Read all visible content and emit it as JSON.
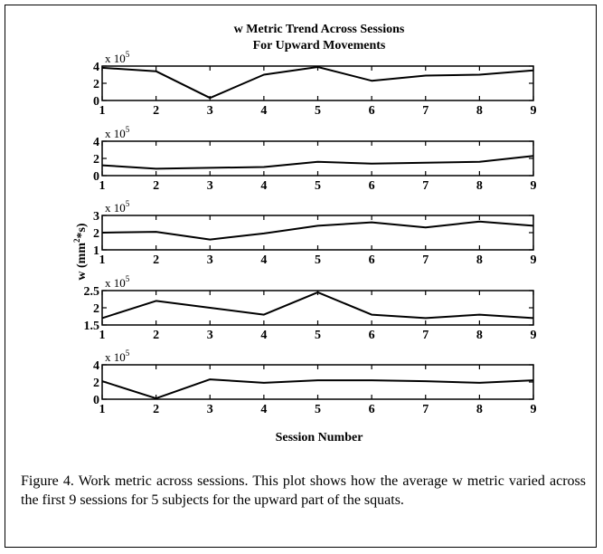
{
  "chart_data": {
    "type": "line",
    "title": "w Metric Trend Across Sessions",
    "subtitle": "For Upward Movements",
    "xlabel": "Session Number",
    "ylabel": "w (mm^2*s)",
    "ylabel_parts": {
      "pre": "w (mm",
      "sup": "2",
      "post": "*s)"
    },
    "x": [
      1,
      2,
      3,
      4,
      5,
      6,
      7,
      8,
      9
    ],
    "xticks": [
      "1",
      "2",
      "3",
      "4",
      "5",
      "6",
      "7",
      "8",
      "9"
    ],
    "grid": false,
    "line_color": "#000000",
    "panels": [
      {
        "exponent_label": {
          "base": "x 10",
          "exp": "5"
        },
        "ylim": [
          0,
          4
        ],
        "yticks": [
          0,
          2,
          4
        ],
        "ytick_labels": [
          "0",
          "2",
          "4"
        ],
        "values": [
          3.8,
          3.4,
          0.3,
          3.0,
          3.9,
          2.3,
          2.9,
          3.0,
          3.5
        ]
      },
      {
        "exponent_label": {
          "base": "x 10",
          "exp": "5"
        },
        "ylim": [
          0,
          4
        ],
        "yticks": [
          0,
          2,
          4
        ],
        "ytick_labels": [
          "0",
          "2",
          "4"
        ],
        "values": [
          1.2,
          0.8,
          0.9,
          1.0,
          1.6,
          1.4,
          1.5,
          1.6,
          2.3
        ]
      },
      {
        "exponent_label": {
          "base": "x 10",
          "exp": "5"
        },
        "ylim": [
          1,
          3
        ],
        "yticks": [
          1,
          2,
          3
        ],
        "ytick_labels": [
          "1",
          "2",
          "3"
        ],
        "values": [
          2.0,
          2.05,
          1.6,
          1.95,
          2.4,
          2.6,
          2.3,
          2.65,
          2.4
        ]
      },
      {
        "exponent_label": {
          "base": "x 10",
          "exp": "5"
        },
        "ylim": [
          1.5,
          2.5
        ],
        "yticks": [
          1.5,
          2,
          2.5
        ],
        "ytick_labels": [
          "1.5",
          "2",
          "2.5"
        ],
        "values": [
          1.7,
          2.2,
          2.0,
          1.8,
          2.45,
          1.8,
          1.7,
          1.8,
          1.7
        ]
      },
      {
        "exponent_label": {
          "base": "x 10",
          "exp": "5"
        },
        "ylim": [
          0,
          4
        ],
        "yticks": [
          0,
          2,
          4
        ],
        "ytick_labels": [
          "0",
          "2",
          "4"
        ],
        "values": [
          2.1,
          0.1,
          2.3,
          1.9,
          2.2,
          2.2,
          2.1,
          1.9,
          2.2
        ]
      }
    ]
  },
  "caption": "Figure 4.  Work metric across sessions.  This plot shows how the average w metric varied across the first 9 sessions for 5 subjects for the upward part of the squats."
}
